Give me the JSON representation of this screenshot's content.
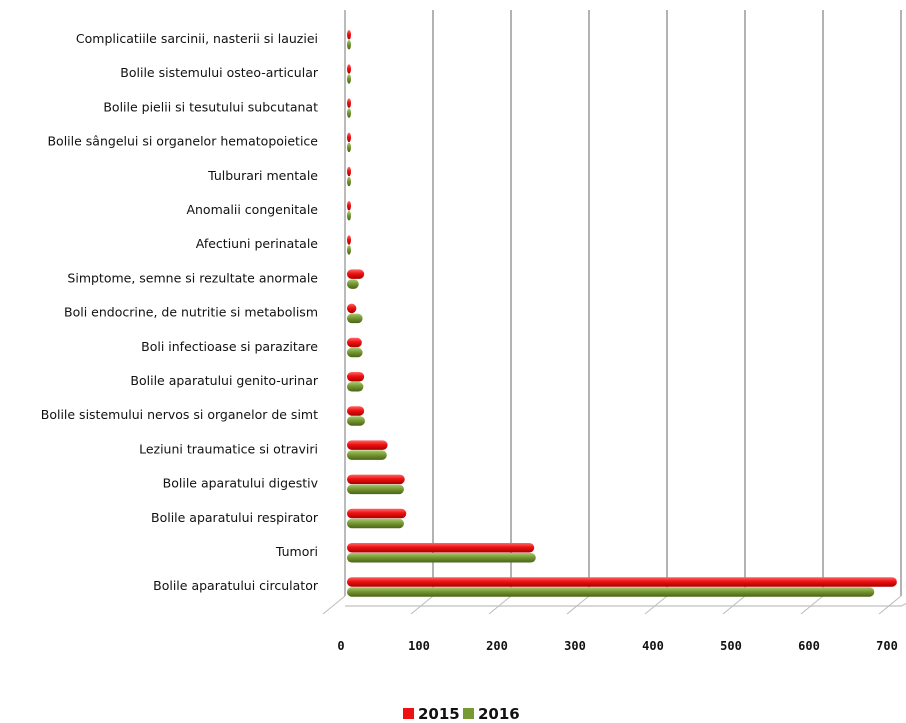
{
  "chart_data": {
    "type": "bar",
    "orientation": "horizontal",
    "categories": [
      "Complicatiile sarcinii,  nasterii si lauziei",
      "Bolile sistemului osteo-articular",
      "Bolile pielii si tesutului subcutanat",
      "Bolile sângelui si organelor hematopoietice",
      "Tulburari mentale",
      "Anomalii congenitale",
      "Afectiuni perinatale",
      "Simptome, semne si rezultate anormale",
      "Boli endocrine, de nutritie si metabolism",
      "Boli infectioase  si parazitare",
      "Bolile aparatului genito-urinar",
      "Bolile sistemului nervos si organelor de simt",
      "Leziuni traumatice si otraviri",
      "Bolile aparatului digestiv",
      "Bolile aparatului respirator",
      "Tumori",
      "Bolile aparatului circulator"
    ],
    "series": [
      {
        "name": "2015",
        "color": "#ee1111",
        "values": [
          2,
          2,
          3,
          2,
          2,
          2,
          5,
          22,
          12,
          19,
          22,
          22,
          52,
          74,
          76,
          240,
          705
        ]
      },
      {
        "name": "2016",
        "color": "#779933",
        "values": [
          1,
          1,
          1,
          1,
          2,
          2,
          3,
          15,
          20,
          20,
          21,
          23,
          51,
          73,
          73,
          242,
          676
        ]
      }
    ],
    "xlim": [
      0,
      700
    ],
    "xticks": [
      0,
      100,
      200,
      300,
      400,
      500,
      600,
      700
    ],
    "grid": true,
    "legend_position": "bottom",
    "title": "",
    "xlabel": "",
    "ylabel": ""
  }
}
